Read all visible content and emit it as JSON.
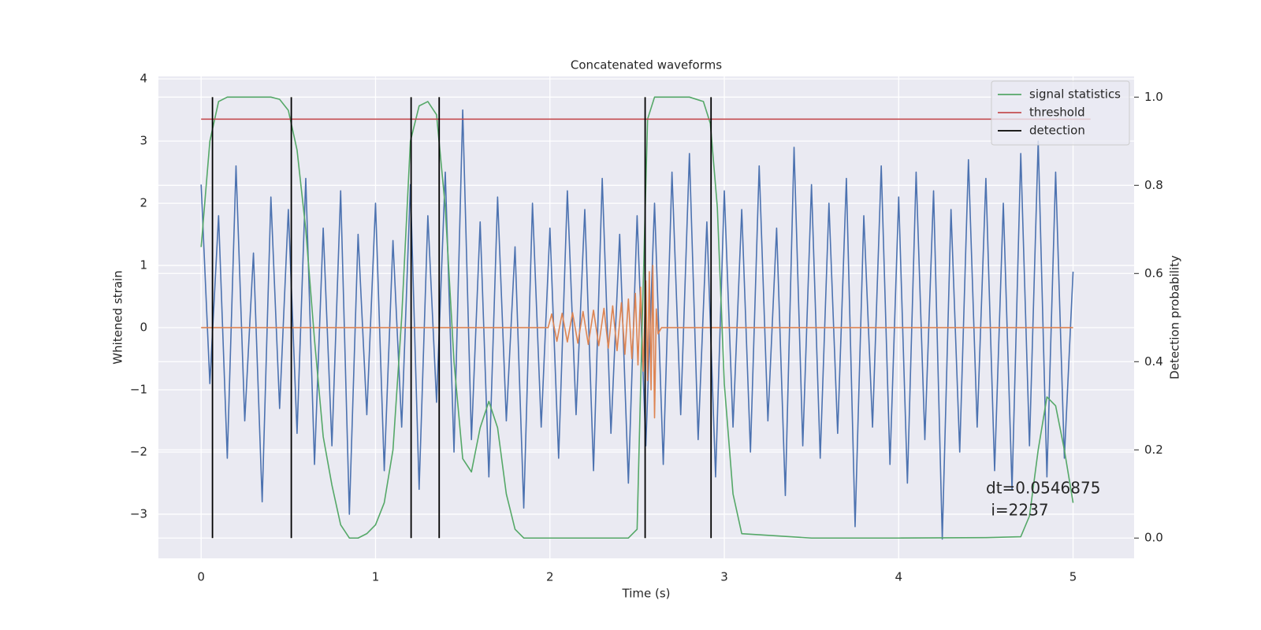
{
  "chart_data": {
    "type": "line",
    "title": "Concatenated waveforms",
    "xlabel": "Time (s)",
    "ylabel": "Whitened strain",
    "y2label": "Detection probability",
    "xlim": [
      -0.245,
      5.35
    ],
    "ylim": [
      -3.71,
      4.04
    ],
    "y2lim": [
      -0.046,
      1.047
    ],
    "xticks": [
      0,
      1,
      2,
      3,
      4,
      5
    ],
    "yticks": [
      {
        "value": -3,
        "label": "−3"
      },
      {
        "value": -2,
        "label": "−2"
      },
      {
        "value": -1,
        "label": "−1"
      },
      0,
      1,
      2,
      3,
      4
    ],
    "y2ticks": [
      {
        "value": 0,
        "label": "0.0"
      },
      0.2,
      0.4,
      0.6,
      0.8,
      {
        "value": 1,
        "label": "1.0"
      }
    ],
    "grid": true,
    "background": "#eaeaf2",
    "legend": "upper right",
    "annotation": [
      "dt=0.0546875",
      " i=2237"
    ],
    "series": [
      {
        "color": "#4c72b0",
        "kind": "line",
        "x": [
          0,
          0.05,
          0.1,
          0.15,
          0.2,
          0.25,
          0.3,
          0.35,
          0.4,
          0.45,
          0.5,
          0.55,
          0.6,
          0.65,
          0.7,
          0.75,
          0.8,
          0.85,
          0.9,
          0.95,
          1,
          1.05,
          1.1,
          1.15,
          1.2,
          1.25,
          1.3,
          1.35,
          1.4,
          1.45,
          1.5,
          1.55,
          1.6,
          1.65,
          1.7,
          1.75,
          1.8,
          1.85,
          1.9,
          1.95,
          2,
          2.05,
          2.1,
          2.15,
          2.2,
          2.25,
          2.3,
          2.35,
          2.4,
          2.45,
          2.5,
          2.55,
          2.6,
          2.65,
          2.7,
          2.75,
          2.8,
          2.85,
          2.9,
          2.95,
          3,
          3.05,
          3.1,
          3.15,
          3.2,
          3.25,
          3.3,
          3.35,
          3.4,
          3.45,
          3.5,
          3.55,
          3.6,
          3.65,
          3.7,
          3.75,
          3.8,
          3.85,
          3.9,
          3.95,
          4,
          4.05,
          4.1,
          4.15,
          4.2,
          4.25,
          4.3,
          4.35,
          4.4,
          4.45,
          4.5,
          4.55,
          4.6,
          4.65,
          4.7,
          4.75,
          4.8,
          4.85,
          4.9,
          4.95,
          5
        ],
        "values": [
          2.3,
          -0.9,
          1.8,
          -2.1,
          2.6,
          -1.5,
          1.2,
          -2.8,
          2.1,
          -1.3,
          1.9,
          -1.7,
          2.4,
          -2.2,
          1.6,
          -1.9,
          2.2,
          -3.0,
          1.5,
          -1.4,
          2.0,
          -2.3,
          1.4,
          -1.6,
          2.3,
          -2.6,
          1.8,
          -1.2,
          2.5,
          -2.0,
          3.5,
          -1.8,
          1.7,
          -2.4,
          2.1,
          -1.5,
          1.3,
          -2.9,
          2.0,
          -1.6,
          1.6,
          -2.1,
          2.2,
          -1.4,
          1.9,
          -2.3,
          2.4,
          -1.7,
          1.5,
          -2.5,
          1.8,
          -1.9,
          2.0,
          -2.2,
          2.5,
          -1.4,
          2.8,
          -1.8,
          1.7,
          -2.4,
          2.2,
          -1.6,
          1.9,
          -2.0,
          2.6,
          -1.5,
          1.6,
          -2.7,
          2.9,
          -1.9,
          2.3,
          -2.1,
          2.0,
          -1.7,
          2.4,
          -3.2,
          1.8,
          -1.6,
          2.6,
          -2.2,
          2.1,
          -2.5,
          2.5,
          -1.8,
          2.2,
          -3.4,
          1.9,
          -2.0,
          2.7,
          -1.6,
          2.4,
          -2.3,
          2.0,
          -2.6,
          2.8,
          -1.9,
          3.0,
          -2.4,
          2.5,
          -2.1,
          0.9
        ]
      },
      {
        "color": "#dd8452",
        "kind": "line",
        "x": [
          0,
          1.99,
          2.01,
          2.04,
          2.07,
          2.1,
          2.13,
          2.16,
          2.19,
          2.22,
          2.25,
          2.28,
          2.31,
          2.335,
          2.36,
          2.385,
          2.41,
          2.43,
          2.45,
          2.47,
          2.49,
          2.505,
          2.52,
          2.535,
          2.55,
          2.56,
          2.57,
          2.58,
          2.59,
          2.6,
          2.61,
          2.62,
          2.64,
          5
        ],
        "values": [
          0,
          0,
          0.22,
          -0.22,
          0.23,
          -0.23,
          0.24,
          -0.25,
          0.26,
          -0.27,
          0.28,
          -0.29,
          0.31,
          -0.33,
          0.35,
          -0.37,
          0.4,
          -0.43,
          0.46,
          -0.5,
          0.55,
          -0.6,
          0.65,
          -0.7,
          0.75,
          -0.85,
          0.9,
          -1.0,
          1.0,
          -1.45,
          0.3,
          -0.1,
          0,
          0
        ]
      },
      {
        "name": "signal statistics",
        "color": "#55a868",
        "kind": "line",
        "axis": "y2",
        "x": [
          0,
          0.05,
          0.1,
          0.15,
          0.2,
          0.3,
          0.4,
          0.45,
          0.5,
          0.55,
          0.6,
          0.65,
          0.7,
          0.75,
          0.8,
          0.85,
          0.9,
          0.95,
          1.0,
          1.05,
          1.1,
          1.15,
          1.2,
          1.25,
          1.3,
          1.35,
          1.4,
          1.45,
          1.5,
          1.55,
          1.6,
          1.65,
          1.7,
          1.75,
          1.8,
          1.85,
          1.9,
          2.0,
          2.3,
          2.45,
          2.5,
          2.53,
          2.56,
          2.6,
          2.7,
          2.8,
          2.88,
          2.92,
          2.96,
          3.0,
          3.05,
          3.1,
          3.5,
          4.0,
          4.5,
          4.7,
          4.75,
          4.8,
          4.85,
          4.9,
          4.95,
          5.0
        ],
        "values": [
          0.66,
          0.9,
          0.99,
          1.0,
          1.0,
          1.0,
          1.0,
          0.995,
          0.97,
          0.88,
          0.7,
          0.45,
          0.23,
          0.12,
          0.03,
          0.0,
          0.0,
          0.01,
          0.03,
          0.08,
          0.2,
          0.5,
          0.9,
          0.98,
          0.99,
          0.96,
          0.75,
          0.4,
          0.18,
          0.15,
          0.25,
          0.31,
          0.25,
          0.1,
          0.02,
          0.0,
          0.0,
          0.0,
          0.0,
          0.0,
          0.02,
          0.5,
          0.95,
          1.0,
          1.0,
          1.0,
          0.99,
          0.94,
          0.75,
          0.35,
          0.1,
          0.01,
          0.0,
          0.0,
          0.001,
          0.003,
          0.05,
          0.2,
          0.32,
          0.3,
          0.2,
          0.08
        ]
      },
      {
        "name": "threshold",
        "color": "#c44e52",
        "kind": "line",
        "axis": "y2",
        "x": [
          0,
          5.1
        ],
        "values": [
          0.95,
          0.95
        ]
      },
      {
        "name": "detection",
        "color": "#000000",
        "kind": "vlines",
        "axis": "y2",
        "x": [
          0.065,
          0.517,
          1.204,
          1.365,
          2.546,
          2.924
        ],
        "y_range": [
          0,
          1
        ]
      }
    ]
  }
}
